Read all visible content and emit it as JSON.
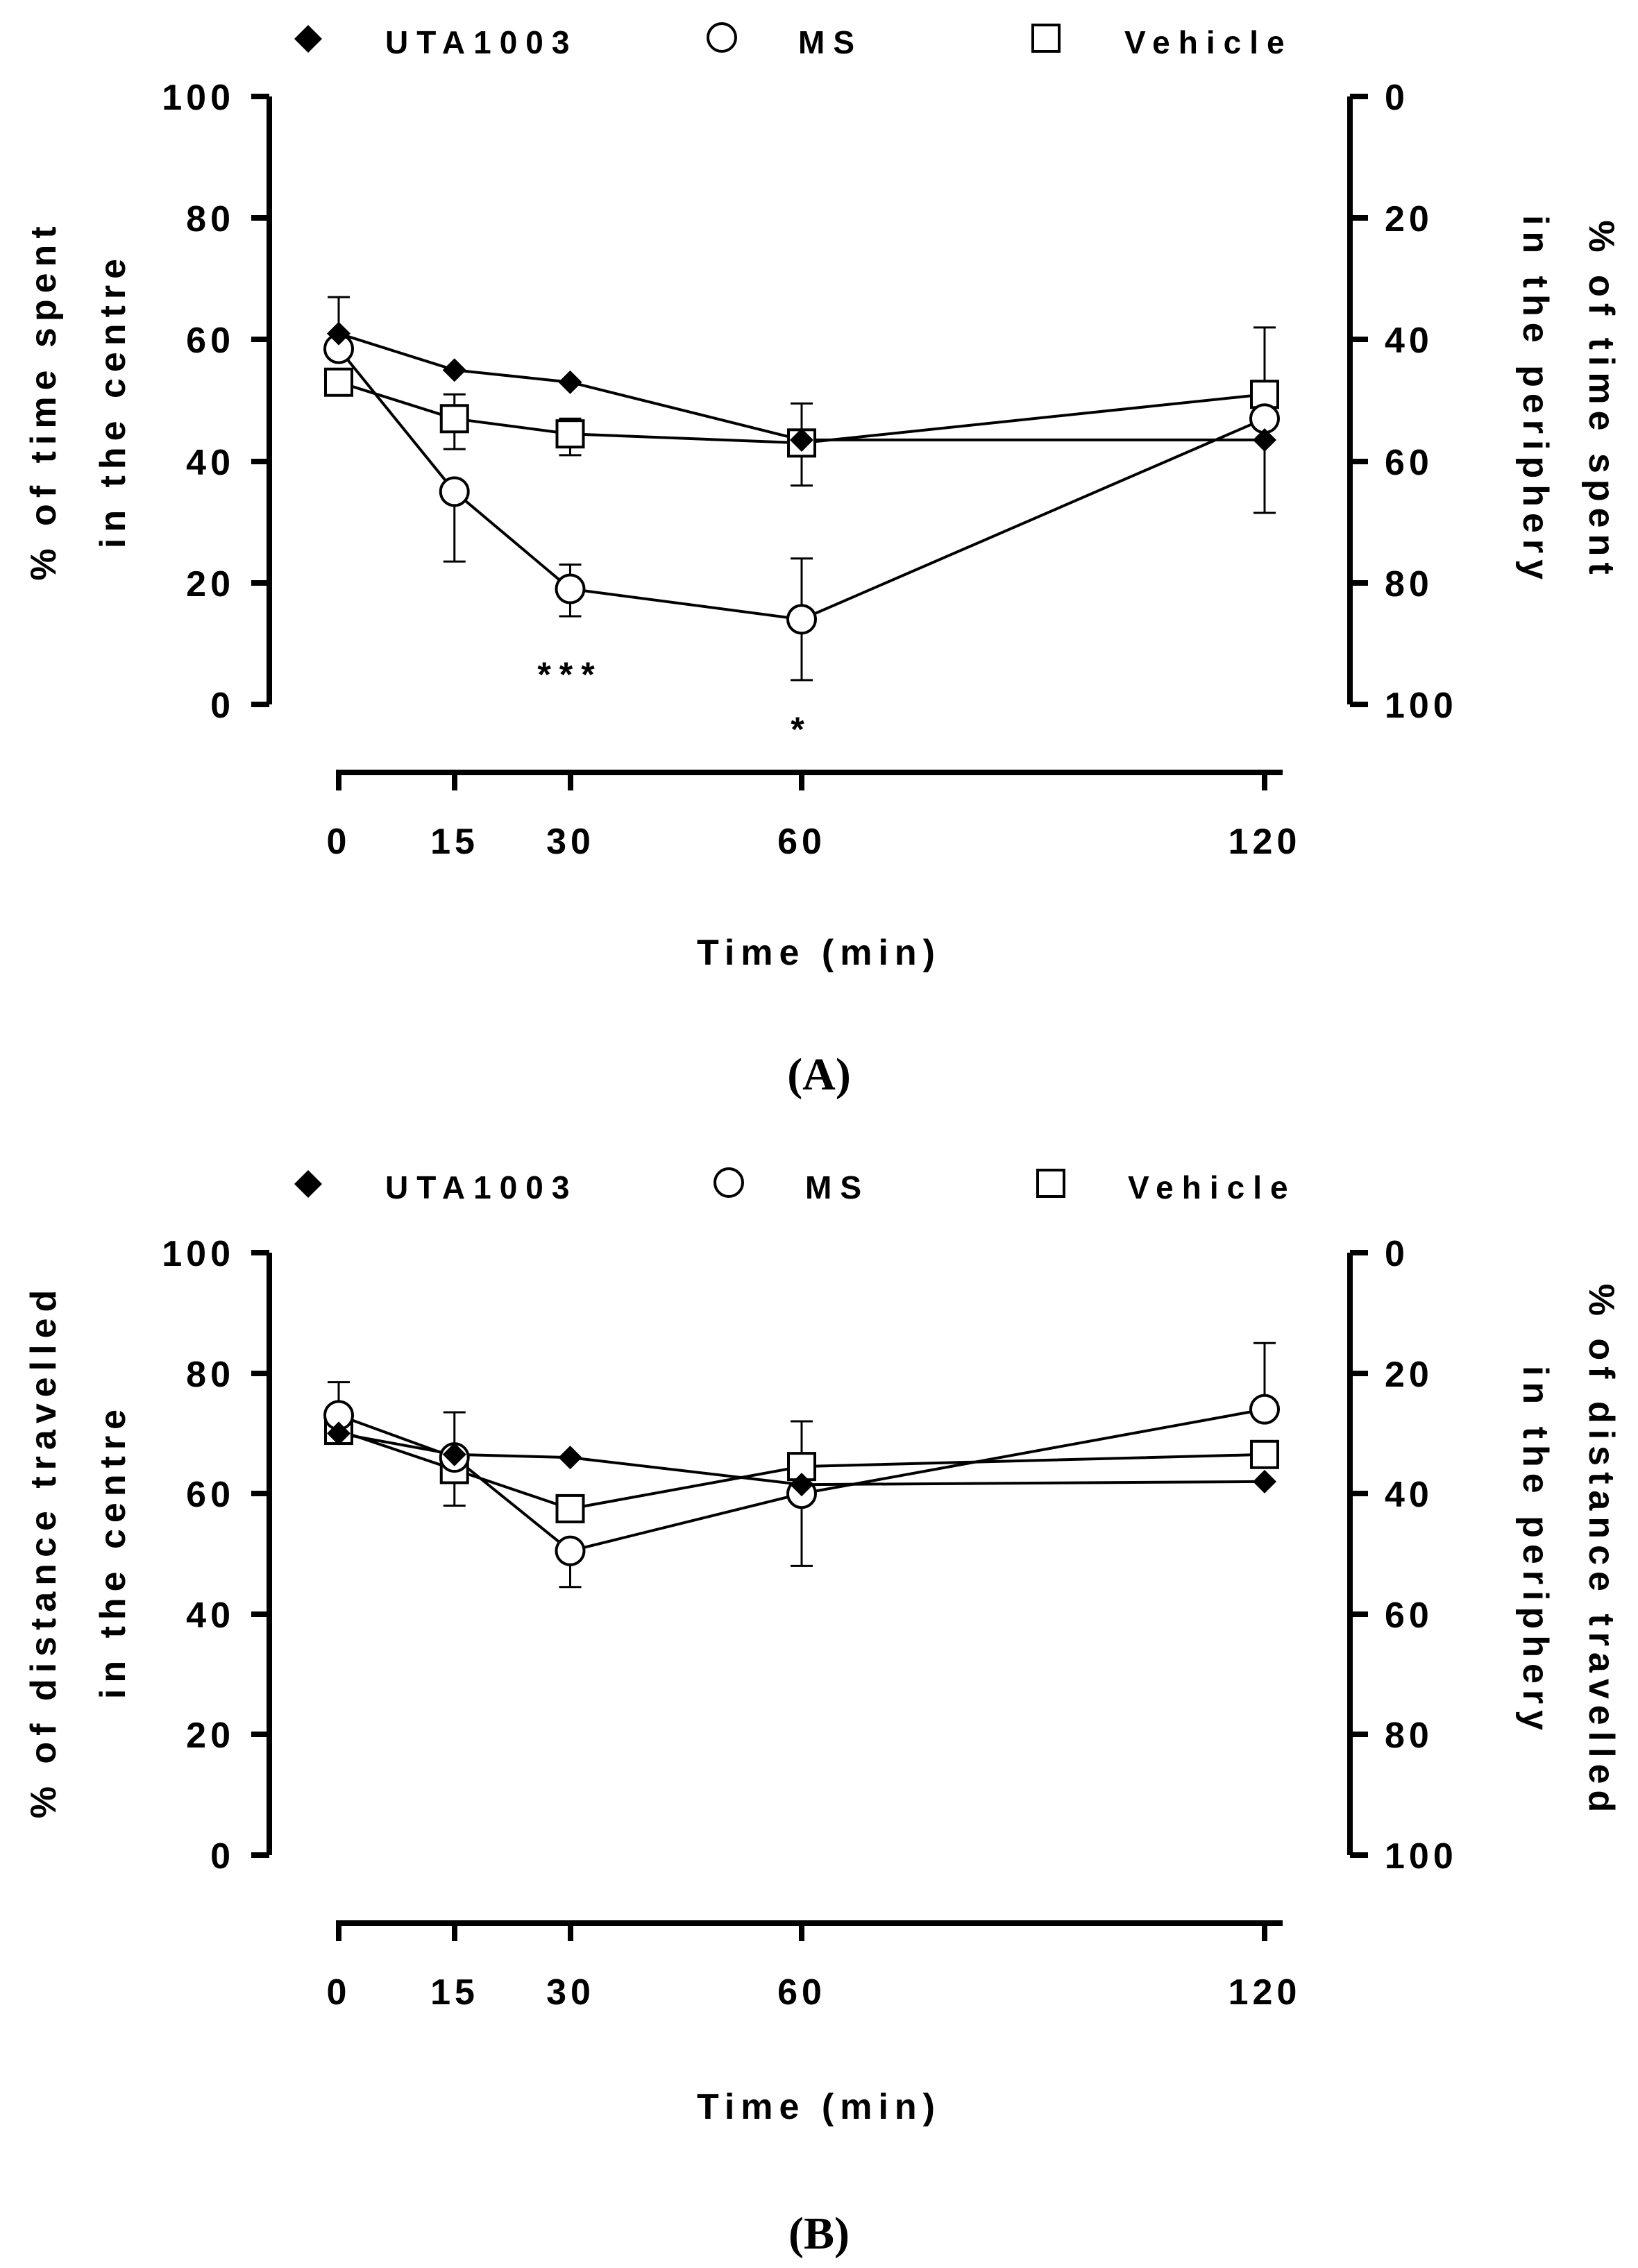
{
  "chart_data": [
    {
      "type": "line",
      "panel_label": "(A)",
      "legend": [
        {
          "name": "UTA1003",
          "marker": "diamond-filled"
        },
        {
          "name": "MS",
          "marker": "circle-open"
        },
        {
          "name": "Vehicle",
          "marker": "square-open"
        }
      ],
      "x": [
        0,
        15,
        30,
        60,
        120
      ],
      "x_tick_labels": [
        "0",
        "15",
        "30",
        "60",
        "120"
      ],
      "xlabel": "Time (min)",
      "ylabel_left": [
        "% of time spent",
        "in the centre"
      ],
      "ylabel_right": [
        "% of time spent",
        "in the periphery"
      ],
      "ylim": [
        0,
        100
      ],
      "y_ticks_left": [
        "0",
        "20",
        "40",
        "60",
        "80",
        "100"
      ],
      "y_ticks_right": [
        "100",
        "80",
        "60",
        "40",
        "20",
        "0"
      ],
      "series": [
        {
          "name": "UTA1003",
          "marker": "diamond-filled",
          "values": [
            61,
            55,
            53,
            43.5,
            43.5
          ],
          "err_plus": [
            6,
            0,
            0,
            0,
            0
          ],
          "err_minus": [
            0,
            0,
            0,
            0,
            12
          ]
        },
        {
          "name": "MS",
          "marker": "circle-open",
          "values": [
            58.5,
            35,
            19,
            14,
            47
          ],
          "err_plus": [
            0,
            0,
            4,
            10,
            0
          ],
          "err_minus": [
            0,
            11.5,
            4.5,
            10,
            0
          ]
        },
        {
          "name": "Vehicle",
          "marker": "square-open",
          "values": [
            53,
            47,
            44.5,
            43,
            51
          ],
          "err_plus": [
            0,
            4,
            2.5,
            6.5,
            11
          ],
          "err_minus": [
            1.5,
            5,
            3.5,
            7,
            0
          ]
        }
      ],
      "annotations": [
        {
          "text": "***",
          "x": 30,
          "y": 5
        },
        {
          "text": "*",
          "x": 60,
          "y": -4
        }
      ]
    },
    {
      "type": "line",
      "panel_label": "(B)",
      "legend": [
        {
          "name": "UTA1003",
          "marker": "diamond-filled"
        },
        {
          "name": "MS",
          "marker": "circle-open"
        },
        {
          "name": "Vehicle",
          "marker": "square-open"
        }
      ],
      "x": [
        0,
        15,
        30,
        60,
        120
      ],
      "x_tick_labels": [
        "0",
        "15",
        "30",
        "60",
        "120"
      ],
      "xlabel": "Time (min)",
      "ylabel_left": [
        "% of distance travelled",
        "in the centre"
      ],
      "ylabel_right": [
        "% of distance travelled",
        "in the periphery"
      ],
      "ylim": [
        0,
        100
      ],
      "y_ticks_left": [
        "0",
        "20",
        "40",
        "60",
        "80",
        "100"
      ],
      "y_ticks_right": [
        "100",
        "80",
        "60",
        "40",
        "20",
        "0"
      ],
      "series": [
        {
          "name": "UTA1003",
          "marker": "diamond-filled",
          "values": [
            70,
            66.5,
            66,
            61.5,
            62
          ],
          "err_plus": [
            0,
            0,
            0,
            0,
            0
          ],
          "err_minus": [
            0,
            0,
            0,
            0,
            0
          ]
        },
        {
          "name": "MS",
          "marker": "circle-open",
          "values": [
            73,
            66,
            50.5,
            60,
            74
          ],
          "err_plus": [
            5.5,
            7.5,
            0,
            12,
            11
          ],
          "err_minus": [
            0,
            8,
            6,
            12,
            0
          ]
        },
        {
          "name": "Vehicle",
          "marker": "square-open",
          "values": [
            70.5,
            64,
            57.5,
            64.5,
            66.5
          ],
          "err_plus": [
            0,
            0,
            0,
            0,
            0
          ],
          "err_minus": [
            0,
            0,
            0,
            0,
            0
          ]
        }
      ],
      "annotations": []
    }
  ]
}
